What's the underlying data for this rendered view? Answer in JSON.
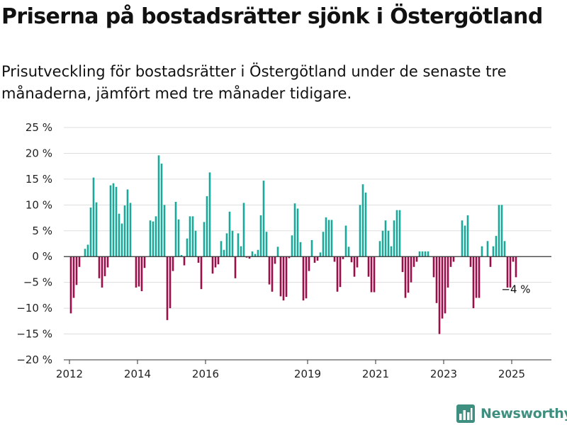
{
  "title": "Priserna på bostadsrätter sjönk i Östergötland",
  "subtitle": "Prisutveckling för bostadsrätter i Östergötland under de senaste tre månaderna, jämfört med tre månader tidigare.",
  "brand": {
    "name": "Newsworthy",
    "icon": "bar-chart-logo-icon"
  },
  "colors": {
    "positive": "#1aa89b",
    "negative": "#9b0e4a",
    "zero_line": "#333333",
    "grid": "#dddddd",
    "brand": "#3e8f7f"
  },
  "chart_data": {
    "type": "bar",
    "title": "",
    "xlabel": "",
    "ylabel": "",
    "ylim": [
      -20,
      25
    ],
    "grid": true,
    "y_ticks": [
      25,
      20,
      15,
      10,
      5,
      0,
      -5,
      -10,
      -15,
      -20
    ],
    "y_tick_labels": [
      "25 %",
      "20 %",
      "15 %",
      "10 %",
      "5 %",
      "0 %",
      "−5 %",
      "−10 %",
      "−15 %",
      "−20 %"
    ],
    "x_tick_labels": [
      {
        "label": "2012",
        "month": "2012-01"
      },
      {
        "label": "2014",
        "month": "2014-01"
      },
      {
        "label": "2016",
        "month": "2016-01"
      },
      {
        "label": "2019",
        "month": "2019-01"
      },
      {
        "label": "2021",
        "month": "2021-01"
      },
      {
        "label": "2023",
        "month": "2023-01"
      },
      {
        "label": "2025",
        "month": "2025-01"
      }
    ],
    "months": [
      "2012-01",
      "2012-02",
      "2012-03",
      "2012-04",
      "2012-05",
      "2012-06",
      "2012-07",
      "2012-08",
      "2012-09",
      "2012-10",
      "2012-11",
      "2012-12",
      "2013-01",
      "2013-02",
      "2013-03",
      "2013-04",
      "2013-05",
      "2013-06",
      "2013-07",
      "2013-08",
      "2013-09",
      "2013-10",
      "2013-11",
      "2013-12",
      "2014-01",
      "2014-02",
      "2014-03",
      "2014-04",
      "2014-05",
      "2014-06",
      "2014-07",
      "2014-08",
      "2014-09",
      "2014-10",
      "2014-11",
      "2014-12",
      "2015-01",
      "2015-02",
      "2015-03",
      "2015-04",
      "2015-05",
      "2015-06",
      "2015-07",
      "2015-08",
      "2015-09",
      "2015-10",
      "2015-11",
      "2015-12",
      "2016-01",
      "2016-02",
      "2016-03",
      "2016-04",
      "2016-05",
      "2016-06",
      "2016-07",
      "2016-08",
      "2016-09",
      "2016-10",
      "2016-11",
      "2016-12",
      "2017-01",
      "2017-02",
      "2017-03",
      "2017-04",
      "2017-05",
      "2017-06",
      "2017-07",
      "2017-08",
      "2017-09",
      "2017-10",
      "2017-11",
      "2017-12",
      "2018-01",
      "2018-02",
      "2018-03",
      "2018-04",
      "2018-05",
      "2018-06",
      "2018-07",
      "2018-08",
      "2018-09",
      "2018-10",
      "2018-11",
      "2018-12",
      "2019-01",
      "2019-02",
      "2019-03",
      "2019-04",
      "2019-05",
      "2019-06",
      "2019-07",
      "2019-08",
      "2019-09",
      "2019-10",
      "2019-11",
      "2019-12",
      "2020-01",
      "2020-02",
      "2020-03",
      "2020-04",
      "2020-05",
      "2020-06",
      "2020-07",
      "2020-08",
      "2020-09",
      "2020-10",
      "2020-11",
      "2020-12",
      "2021-01",
      "2021-02",
      "2021-03",
      "2021-04",
      "2021-05",
      "2021-06",
      "2021-07",
      "2021-08",
      "2021-09",
      "2021-10",
      "2021-11",
      "2021-12",
      "2022-01",
      "2022-02",
      "2022-03",
      "2022-04",
      "2022-05",
      "2022-06",
      "2022-07",
      "2022-08",
      "2022-09",
      "2022-10",
      "2022-11",
      "2022-12",
      "2023-01",
      "2023-02",
      "2023-03",
      "2023-04",
      "2023-05",
      "2023-06",
      "2023-07",
      "2023-08",
      "2023-09",
      "2023-10",
      "2023-11",
      "2023-12",
      "2024-01",
      "2024-02",
      "2024-03",
      "2024-04",
      "2024-05",
      "2024-06",
      "2024-07",
      "2024-08",
      "2024-09",
      "2024-10",
      "2024-11",
      "2024-12",
      "2025-01",
      "2025-02",
      "2025-03",
      "2025-04"
    ],
    "values": [
      -11,
      -8,
      -5.5,
      -2,
      0,
      1.5,
      2.3,
      9.5,
      15.3,
      10.5,
      -4.2,
      -6,
      -3.8,
      -2.1,
      13.8,
      14.2,
      13.5,
      8.3,
      6.4,
      9.9,
      13,
      10.4,
      0,
      -6,
      -5.8,
      -6.7,
      -2.2,
      0,
      7,
      6.8,
      7.8,
      19.6,
      18,
      10,
      -12.3,
      -10,
      -2.8,
      10.6,
      7.2,
      0.3,
      -1.7,
      3.5,
      7.8,
      7.8,
      5,
      -1.2,
      -6.3,
      6.7,
      11.7,
      16.3,
      -3.3,
      -2.1,
      -1.5,
      3,
      1.3,
      4.5,
      8.7,
      5,
      -4.2,
      4.5,
      2,
      10.4,
      -0.2,
      -0.4,
      1,
      0.5,
      1.3,
      8,
      14.7,
      4.8,
      -5.4,
      -6.8,
      -1.4,
      1.9,
      -7.7,
      -8.5,
      -7.8,
      -0.3,
      4.1,
      10.3,
      9.3,
      2.8,
      -8.5,
      -8.1,
      -2.8,
      3.2,
      -1.2,
      -0.8,
      0.8,
      4.8,
      7.6,
      7.1,
      7.1,
      -1,
      -6.8,
      -5.9,
      -0.5,
      6,
      1.9,
      -1.1,
      -3.9,
      -2.1,
      10,
      14,
      12.4,
      -3.9,
      -6.9,
      -6.9,
      0,
      3,
      5,
      7,
      5,
      2,
      7,
      9,
      9,
      -3,
      -8,
      -7,
      -5,
      -2,
      -1,
      1,
      1,
      1,
      1,
      0,
      -4,
      -9,
      -15,
      -12,
      -11,
      -6,
      -2,
      -1,
      0,
      0,
      7,
      6,
      8,
      -2,
      -10,
      -8,
      -8,
      2,
      0,
      3,
      -2,
      2,
      4,
      10,
      10,
      3,
      -6,
      -6,
      -1,
      -4,
      0,
      0
    ],
    "annotations": [
      {
        "month": "2025-02",
        "text": "−4 %"
      }
    ]
  }
}
